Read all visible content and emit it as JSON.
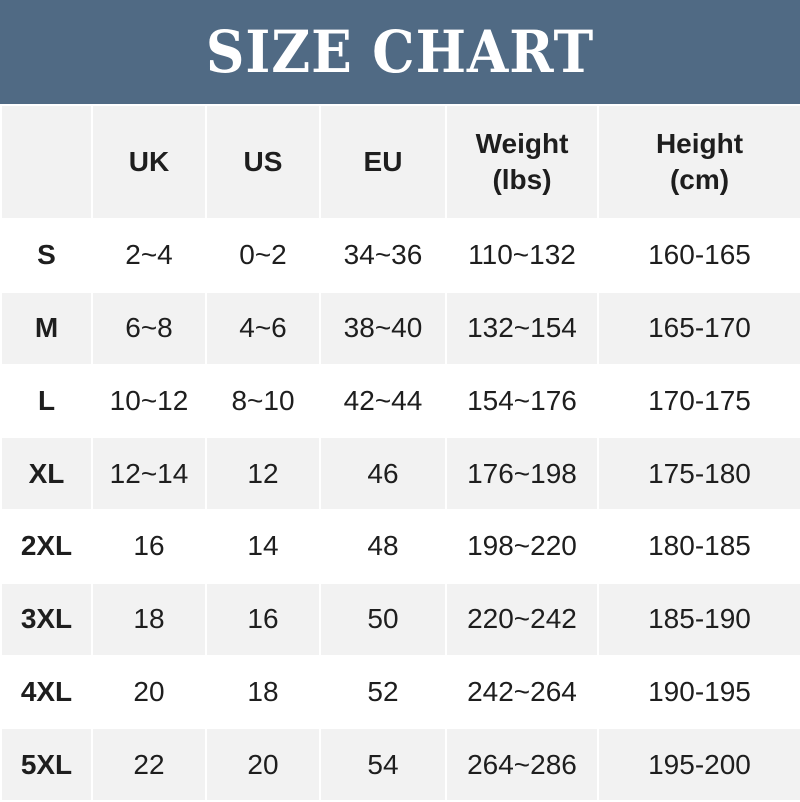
{
  "title": "SIZE CHART",
  "colors": {
    "banner": "#506a84",
    "stripe": "#f2f2f2"
  },
  "headers": [
    "",
    "UK",
    "US",
    "EU",
    "Weight",
    "(lbs)",
    "Height",
    "(cm)"
  ],
  "rows": [
    [
      "S",
      "2~4",
      "0~2",
      "34~36",
      "110~132",
      "160-165"
    ],
    [
      "M",
      "6~8",
      "4~6",
      "38~40",
      "132~154",
      "165-170"
    ],
    [
      "L",
      "10~12",
      "8~10",
      "42~44",
      "154~176",
      "170-175"
    ],
    [
      "XL",
      "12~14",
      "12",
      "46",
      "176~198",
      "175-180"
    ],
    [
      "2XL",
      "16",
      "14",
      "48",
      "198~220",
      "180-185"
    ],
    [
      "3XL",
      "18",
      "16",
      "50",
      "220~242",
      "185-190"
    ],
    [
      "4XL",
      "20",
      "18",
      "52",
      "242~264",
      "190-195"
    ],
    [
      "5XL",
      "22",
      "20",
      "54",
      "264~286",
      "195-200"
    ]
  ]
}
